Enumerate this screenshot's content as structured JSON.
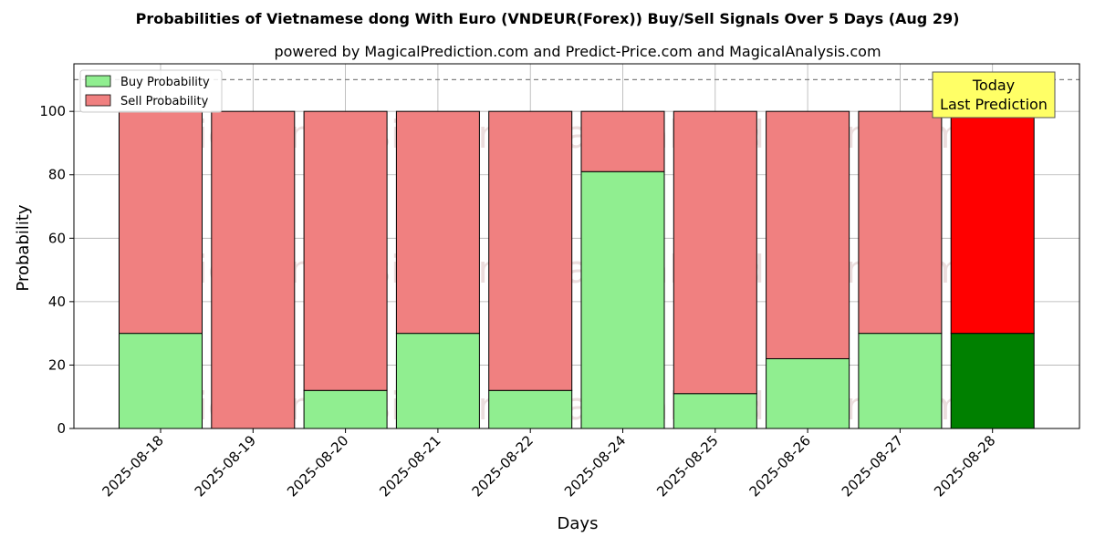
{
  "chart_data": {
    "type": "bar",
    "stacked": true,
    "title": "Probabilities of Vietnamese dong With Euro (VNDEUR(Forex)) Buy/Sell Signals Over 5 Days (Aug 29)",
    "subtitle": "powered by MagicalPrediction.com and Predict-Price.com and MagicalAnalysis.com",
    "xlabel": "Days",
    "ylabel": "Probability",
    "ylim": [
      0,
      115
    ],
    "yticks": [
      0,
      20,
      40,
      60,
      80,
      100
    ],
    "grid": true,
    "legend_position": "top-left",
    "threshold_line": 110,
    "categories": [
      "2025-08-18",
      "2025-08-19",
      "2025-08-20",
      "2025-08-21",
      "2025-08-22",
      "2025-08-24",
      "2025-08-25",
      "2025-08-26",
      "2025-08-27",
      "2025-08-28"
    ],
    "series": [
      {
        "name": "Buy Probability",
        "values": [
          30,
          0,
          12,
          30,
          12,
          81,
          11,
          22,
          30,
          30
        ]
      },
      {
        "name": "Sell Probability",
        "values": [
          70,
          100,
          88,
          70,
          88,
          19,
          89,
          78,
          70,
          70
        ]
      }
    ],
    "annotation": {
      "line1": "Today",
      "line2": "Last Prediction"
    },
    "watermarks": [
      "MagicalAnalysis.com",
      "MagicalPrediction.com"
    ]
  },
  "colors": {
    "buy": "#90ee90",
    "sell": "#f08080",
    "buy_today": "#008000",
    "sell_today": "#ff0000",
    "annotation_bg": "#ffff66"
  }
}
